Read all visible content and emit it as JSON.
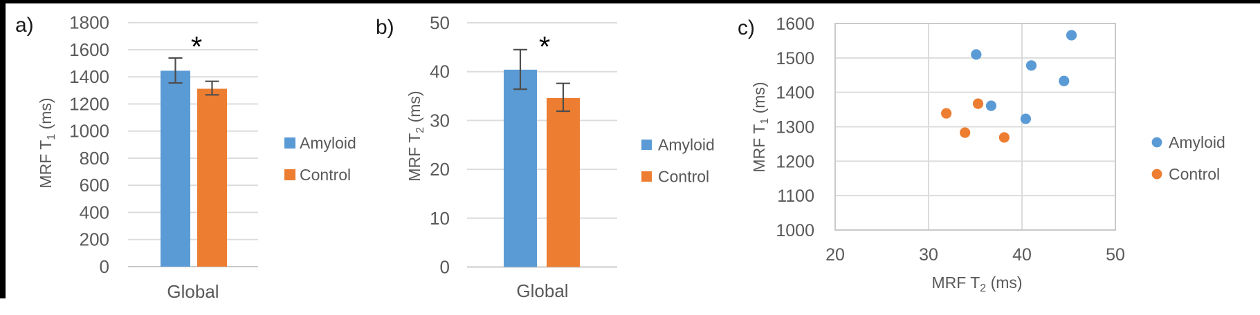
{
  "figure": {
    "background": "#ffffff",
    "frame_color": "#000000"
  },
  "colors": {
    "amyloid": "#5B9BD5",
    "control": "#ED7D31",
    "gridline": "#DCDCDC",
    "axis_line": "#C9C9C9",
    "axis_text": "#595959",
    "error_bar": "#4D4D4D",
    "panel_letter": "#1a1a1a",
    "significance": "#000000"
  },
  "chart_data": [
    {
      "id": "a",
      "type": "bar",
      "panel_label": "a)",
      "categories": [
        "Global"
      ],
      "ylabel": "MRF T1 (ms)",
      "ylabel_parts": {
        "prefix": "MRF T",
        "sub": "1",
        "suffix": " (ms)"
      },
      "ylim": [
        0,
        1800
      ],
      "ytick_step": 200,
      "grid": true,
      "annotation": "*",
      "legend_position": "right",
      "series": [
        {
          "name": "Amyloid",
          "color": "#5B9BD5",
          "values": [
            1445
          ],
          "error_low": [
            1355
          ],
          "error_high": [
            1539
          ]
        },
        {
          "name": "Control",
          "color": "#ED7D31",
          "values": [
            1312
          ],
          "error_low": [
            1267
          ],
          "error_high": [
            1367
          ]
        }
      ]
    },
    {
      "id": "b",
      "type": "bar",
      "panel_label": "b)",
      "categories": [
        "Global"
      ],
      "ylabel": "MRF T2 (ms)",
      "ylabel_parts": {
        "prefix": "MRF T",
        "sub": "2",
        "suffix": " (ms)"
      },
      "ylim": [
        0,
        50
      ],
      "ytick_step": 10,
      "grid": true,
      "annotation": "*",
      "legend_position": "right",
      "series": [
        {
          "name": "Amyloid",
          "color": "#5B9BD5",
          "values": [
            40.4
          ],
          "error_low": [
            36.4
          ],
          "error_high": [
            44.5
          ]
        },
        {
          "name": "Control",
          "color": "#ED7D31",
          "values": [
            34.6
          ],
          "error_low": [
            31.9
          ],
          "error_high": [
            37.6
          ]
        }
      ]
    },
    {
      "id": "c",
      "type": "scatter",
      "panel_label": "c)",
      "xlabel": "MRF T2 (ms)",
      "xlabel_parts": {
        "prefix": "MRF T",
        "sub": "2",
        "suffix": " (ms)"
      },
      "ylabel": "MRF T1 (ms)",
      "ylabel_parts": {
        "prefix": "MRF T",
        "sub": "1",
        "suffix": " (ms)"
      },
      "xlim": [
        20,
        50
      ],
      "xtick_step": 10,
      "ylim": [
        1000,
        1600
      ],
      "ytick_step": 100,
      "grid": true,
      "legend_position": "right",
      "series": [
        {
          "name": "Amyloid",
          "color": "#5B9BD5",
          "points": [
            [
              45.3,
              1566
            ],
            [
              35.1,
              1510
            ],
            [
              41.0,
              1478
            ],
            [
              44.5,
              1433
            ],
            [
              36.7,
              1361
            ],
            [
              40.4,
              1323
            ]
          ]
        },
        {
          "name": "Control",
          "color": "#ED7D31",
          "points": [
            [
              35.3,
              1367
            ],
            [
              31.9,
              1339
            ],
            [
              33.9,
              1283
            ],
            [
              38.1,
              1269
            ]
          ]
        }
      ]
    }
  ]
}
